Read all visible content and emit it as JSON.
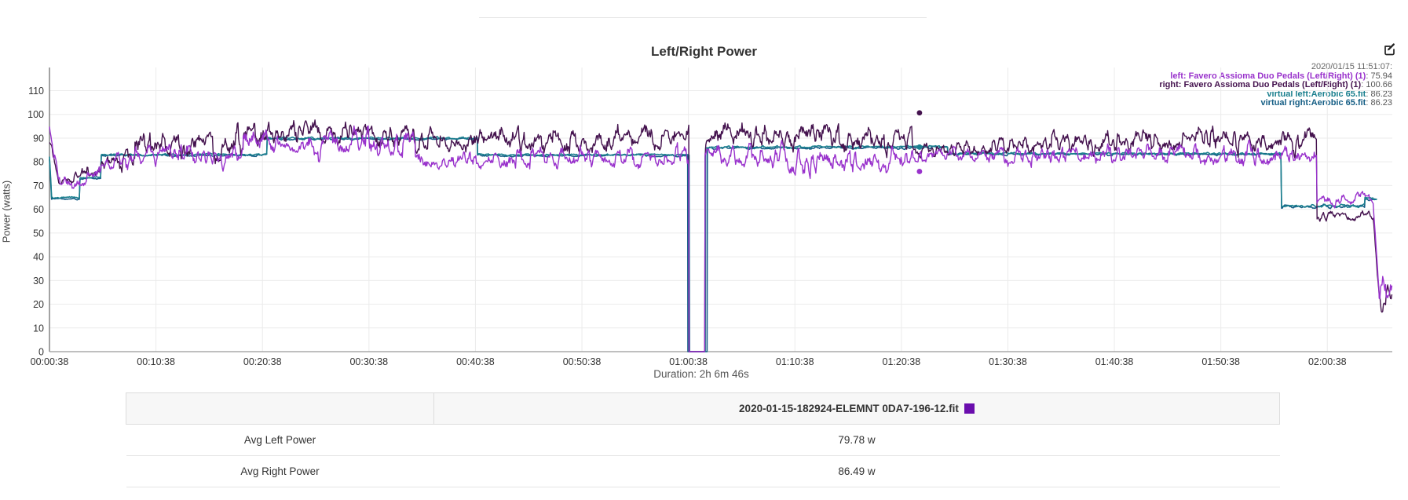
{
  "page": {
    "edit_button_title": "edit chart"
  },
  "chart": {
    "title": "Left/Right Power",
    "y_axis_label": "Power (watts)",
    "duration_caption": "Duration: 2h 6m 46s",
    "legend": {
      "timestamp": "2020/01/15 11:51:07:",
      "entries": [
        {
          "label": "left: Favero Assioma Duo Pedals (Left/Right) (1)",
          "value": "75.94",
          "color": "#9932cc"
        },
        {
          "label": "right: Favero Assioma Duo Pedals (Left/Right) (1)",
          "value": "100.66",
          "color": "#44124e"
        },
        {
          "label": "virtual left:Aerobic 65.fit",
          "value": "86.23",
          "color": "#1a7f8e"
        },
        {
          "label": "virtual right:Aerobic 65.fit",
          "value": "86.23",
          "color": "#155e85"
        }
      ]
    }
  },
  "chart_data": {
    "type": "line",
    "title": "Left/Right Power",
    "xlabel": "",
    "ylabel": "Power (watts)",
    "ylim": [
      0,
      110
    ],
    "y_ticks": [
      0,
      10,
      20,
      30,
      40,
      50,
      60,
      70,
      80,
      90,
      100,
      110
    ],
    "x_tick_labels": [
      "00:00:38",
      "00:10:38",
      "00:20:38",
      "00:30:38",
      "00:40:38",
      "00:50:38",
      "01:00:38",
      "01:10:38",
      "01:20:38",
      "01:30:38",
      "01:40:38",
      "01:50:38",
      "02:00:38"
    ],
    "x_tick_seconds": [
      38,
      638,
      1238,
      1838,
      2438,
      3038,
      3638,
      4238,
      4838,
      5438,
      6038,
      6638,
      7238
    ],
    "t_start": 38,
    "t_end": 7604,
    "grid": true,
    "legend_position": "top-right",
    "axis_color": "#666666",
    "grid_color": "#ebebeb",
    "series": [
      {
        "name": "left: Favero Assioma Duo Pedals (Left/Right) (1)",
        "color": "#9932cc",
        "width": 1.4,
        "avg": 79.78,
        "segments": [
          [
            38,
            55,
            95,
            88,
            1
          ],
          [
            55,
            90,
            88,
            70,
            2
          ],
          [
            90,
            250,
            71,
            72,
            3
          ],
          [
            250,
            330,
            74,
            76,
            3
          ],
          [
            330,
            520,
            79,
            80,
            3.5
          ],
          [
            520,
            1130,
            83,
            83,
            4
          ],
          [
            1130,
            2100,
            88,
            87,
            4.5
          ],
          [
            2100,
            2600,
            81,
            81,
            3.5
          ],
          [
            2600,
            3642,
            82,
            82,
            4
          ],
          [
            3642,
            3732,
            0,
            0,
            0
          ],
          [
            3732,
            4200,
            83,
            82,
            4.5
          ],
          [
            4200,
            4900,
            80,
            81,
            4.5
          ],
          [
            4900,
            5350,
            83,
            83,
            2.5
          ],
          [
            5350,
            6000,
            82,
            83,
            3.5
          ],
          [
            6000,
            7180,
            83,
            83,
            4
          ],
          [
            7180,
            7500,
            64,
            64,
            2
          ],
          [
            7500,
            7530,
            60,
            25,
            2
          ],
          [
            7530,
            7604,
            22,
            26,
            5
          ]
        ]
      },
      {
        "name": "right: Favero Assioma Duo Pedals (Left/Right) (1)",
        "color": "#44124e",
        "width": 1.4,
        "avg": 86.49,
        "segments": [
          [
            38,
            55,
            88,
            85,
            1
          ],
          [
            55,
            90,
            85,
            73,
            2
          ],
          [
            90,
            250,
            73,
            74,
            3
          ],
          [
            250,
            330,
            76,
            78,
            3
          ],
          [
            330,
            520,
            80,
            82,
            3.5
          ],
          [
            520,
            1130,
            87,
            88,
            5
          ],
          [
            1130,
            2100,
            92,
            92,
            5
          ],
          [
            2100,
            3642,
            89,
            90,
            5
          ],
          [
            3642,
            3732,
            0,
            0,
            0
          ],
          [
            3732,
            4900,
            90,
            90,
            5
          ],
          [
            4900,
            5350,
            85,
            85,
            3
          ],
          [
            5350,
            6000,
            87,
            88,
            4
          ],
          [
            6000,
            7180,
            89,
            89,
            4.5
          ],
          [
            7180,
            7500,
            57,
            57,
            2
          ],
          [
            7500,
            7530,
            55,
            22,
            2
          ],
          [
            7530,
            7604,
            20,
            22,
            5
          ]
        ]
      },
      {
        "name": "virtual left:Aerobic 65.fit",
        "color": "#1a7f8e",
        "width": 1.6,
        "avg": 86.23,
        "segments": [
          [
            38,
            50,
            82,
            66,
            0.3
          ],
          [
            50,
            210,
            65,
            65,
            0.4
          ],
          [
            210,
            330,
            73.5,
            73.5,
            0.3
          ],
          [
            330,
            1265,
            83,
            83,
            0.4
          ],
          [
            1265,
            2450,
            90,
            90,
            0.4
          ],
          [
            2450,
            3645,
            83,
            83,
            0.4
          ],
          [
            3645,
            3735,
            0,
            0,
            0
          ],
          [
            3735,
            5100,
            86.3,
            86.3,
            0.5
          ],
          [
            5100,
            6980,
            83.5,
            83.5,
            0.4
          ],
          [
            6980,
            7450,
            61.5,
            61.5,
            0.6
          ],
          [
            7450,
            7520,
            64.5,
            64.5,
            0.4
          ]
        ]
      },
      {
        "name": "virtual right:Aerobic 65.fit",
        "color": "#155e85",
        "width": 1.6,
        "avg": 86.23,
        "segments": [
          [
            38,
            50,
            81,
            65,
            0.3
          ],
          [
            50,
            210,
            64.5,
            64.5,
            0.4
          ],
          [
            210,
            330,
            73,
            73,
            0.3
          ],
          [
            330,
            1265,
            82.7,
            82.7,
            0.4
          ],
          [
            1265,
            2450,
            89.6,
            89.6,
            0.4
          ],
          [
            2450,
            3635,
            82.7,
            82.7,
            0.4
          ],
          [
            3635,
            3745,
            0,
            0,
            0
          ],
          [
            3745,
            5100,
            86,
            86,
            0.5
          ],
          [
            5100,
            6980,
            83.2,
            83.2,
            0.4
          ],
          [
            6980,
            7450,
            61.2,
            61.2,
            0.6
          ],
          [
            7450,
            7515,
            64,
            64,
            0.4
          ]
        ]
      }
    ],
    "hover_markers": [
      {
        "t": 4940,
        "value": 100.66,
        "color": "#44124e"
      },
      {
        "t": 4940,
        "value": 86.23,
        "color": "#155e85"
      },
      {
        "t": 4940,
        "value": 86.23,
        "color": "#1a7f8e"
      },
      {
        "t": 4940,
        "value": 75.94,
        "color": "#9932cc"
      }
    ]
  },
  "table": {
    "file_name": "2020-01-15-182924-ELEMNT 0DA7-196-12.fit",
    "series_color": "#6a0dad",
    "rows": [
      {
        "label": "Avg Left Power",
        "value": "79.78 w"
      },
      {
        "label": "Avg Right Power",
        "value": "86.49 w"
      }
    ]
  }
}
